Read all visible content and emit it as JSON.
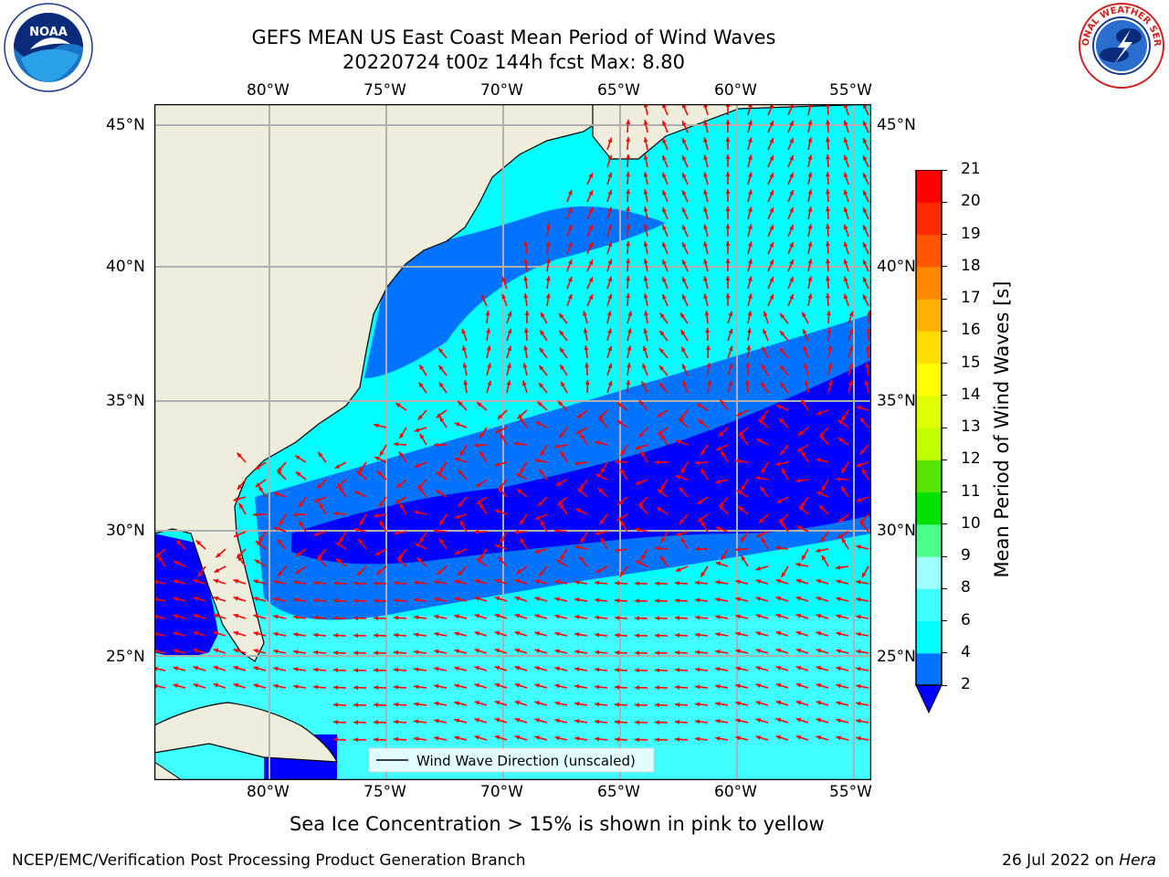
{
  "header": {
    "title_line1": "GEFS MEAN US East Coast Mean Period of Wind Waves",
    "title_line2": "20220724 t00z 144h fcst   Max: 8.80"
  },
  "logos": {
    "left": {
      "text": "NOAA",
      "ring_text": "NATIONAL OCEANIC AND ATMOSPHERIC ADMINISTRATION · U.S. DEPARTMENT OF COMMERCE",
      "icon": "noaa-logo"
    },
    "right": {
      "ring_text": "NATIONAL WEATHER SERVICE",
      "icon": "nws-logo"
    }
  },
  "map": {
    "lon_labels": [
      "80°W",
      "75°W",
      "70°W",
      "65°W",
      "60°W",
      "55°W"
    ],
    "lat_labels": [
      "45°N",
      "40°N",
      "35°N",
      "30°N",
      "25°N"
    ],
    "legend_label": "Wind Wave Direction (unscaled)",
    "arrow_color": "#ff0000",
    "land_color": "#efeedc",
    "grid_color": "#b0b0b0"
  },
  "colorbar": {
    "label": "Mean Period of Wind Waves [s]",
    "ticks": [
      "2",
      "4",
      "6",
      "8",
      "9",
      "10",
      "11",
      "12",
      "13",
      "14",
      "15",
      "16",
      "17",
      "18",
      "19",
      "20",
      "21"
    ],
    "colors": [
      "#0000ff",
      "#0073ff",
      "#00ffff",
      "#40ffff",
      "#a0ffff",
      "#4cff8c",
      "#00e000",
      "#55e600",
      "#bfff00",
      "#e0ff00",
      "#ffff00",
      "#ffdd00",
      "#ffb000",
      "#ff8800",
      "#ff5500",
      "#ff2a00",
      "#ff0000"
    ]
  },
  "caption": "Sea Ice Concentration > 15% is shown in pink to yellow",
  "footer": {
    "left": "NCEP/EMC/Verification Post Processing Product Generation Branch",
    "right_prefix": "26 Jul 2022 on ",
    "right_machine": "Hera"
  }
}
